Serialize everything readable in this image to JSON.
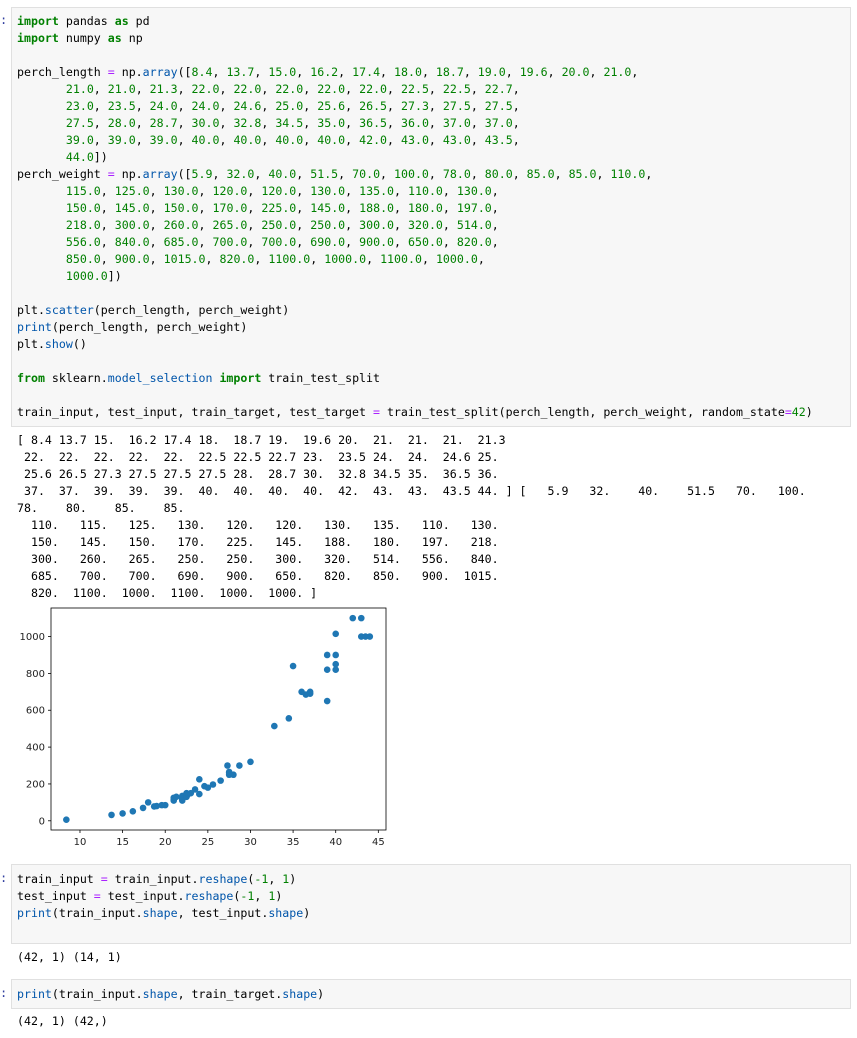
{
  "cell1": {
    "prompt": ":",
    "lines": [
      [
        [
          "import",
          "kw"
        ],
        [
          " pandas ",
          ""
        ],
        [
          "as",
          "kw"
        ],
        [
          " pd",
          ""
        ]
      ],
      [
        [
          "import",
          "kw"
        ],
        [
          " numpy ",
          ""
        ],
        [
          "as",
          "kw"
        ],
        [
          " np",
          ""
        ]
      ],
      [],
      [
        [
          "perch_length ",
          ""
        ],
        [
          "=",
          "op"
        ],
        [
          " np.",
          ""
        ],
        [
          "array",
          "fn"
        ],
        [
          "([",
          ""
        ],
        [
          "8.4",
          "num"
        ],
        [
          ", ",
          ""
        ],
        [
          "13.7",
          "num"
        ],
        [
          ", ",
          ""
        ],
        [
          "15.0",
          "num"
        ],
        [
          ", ",
          ""
        ],
        [
          "16.2",
          "num"
        ],
        [
          ", ",
          ""
        ],
        [
          "17.4",
          "num"
        ],
        [
          ", ",
          ""
        ],
        [
          "18.0",
          "num"
        ],
        [
          ", ",
          ""
        ],
        [
          "18.7",
          "num"
        ],
        [
          ", ",
          ""
        ],
        [
          "19.0",
          "num"
        ],
        [
          ", ",
          ""
        ],
        [
          "19.6",
          "num"
        ],
        [
          ", ",
          ""
        ],
        [
          "20.0",
          "num"
        ],
        [
          ", ",
          ""
        ],
        [
          "21.0",
          "num"
        ],
        [
          ",",
          ""
        ]
      ],
      [
        [
          "       ",
          ""
        ],
        [
          "21.0",
          "num"
        ],
        [
          ", ",
          ""
        ],
        [
          "21.0",
          "num"
        ],
        [
          ", ",
          ""
        ],
        [
          "21.3",
          "num"
        ],
        [
          ", ",
          ""
        ],
        [
          "22.0",
          "num"
        ],
        [
          ", ",
          ""
        ],
        [
          "22.0",
          "num"
        ],
        [
          ", ",
          ""
        ],
        [
          "22.0",
          "num"
        ],
        [
          ", ",
          ""
        ],
        [
          "22.0",
          "num"
        ],
        [
          ", ",
          ""
        ],
        [
          "22.0",
          "num"
        ],
        [
          ", ",
          ""
        ],
        [
          "22.5",
          "num"
        ],
        [
          ", ",
          ""
        ],
        [
          "22.5",
          "num"
        ],
        [
          ", ",
          ""
        ],
        [
          "22.7",
          "num"
        ],
        [
          ",",
          ""
        ]
      ],
      [
        [
          "       ",
          ""
        ],
        [
          "23.0",
          "num"
        ],
        [
          ", ",
          ""
        ],
        [
          "23.5",
          "num"
        ],
        [
          ", ",
          ""
        ],
        [
          "24.0",
          "num"
        ],
        [
          ", ",
          ""
        ],
        [
          "24.0",
          "num"
        ],
        [
          ", ",
          ""
        ],
        [
          "24.6",
          "num"
        ],
        [
          ", ",
          ""
        ],
        [
          "25.0",
          "num"
        ],
        [
          ", ",
          ""
        ],
        [
          "25.6",
          "num"
        ],
        [
          ", ",
          ""
        ],
        [
          "26.5",
          "num"
        ],
        [
          ", ",
          ""
        ],
        [
          "27.3",
          "num"
        ],
        [
          ", ",
          ""
        ],
        [
          "27.5",
          "num"
        ],
        [
          ", ",
          ""
        ],
        [
          "27.5",
          "num"
        ],
        [
          ",",
          ""
        ]
      ],
      [
        [
          "       ",
          ""
        ],
        [
          "27.5",
          "num"
        ],
        [
          ", ",
          ""
        ],
        [
          "28.0",
          "num"
        ],
        [
          ", ",
          ""
        ],
        [
          "28.7",
          "num"
        ],
        [
          ", ",
          ""
        ],
        [
          "30.0",
          "num"
        ],
        [
          ", ",
          ""
        ],
        [
          "32.8",
          "num"
        ],
        [
          ", ",
          ""
        ],
        [
          "34.5",
          "num"
        ],
        [
          ", ",
          ""
        ],
        [
          "35.0",
          "num"
        ],
        [
          ", ",
          ""
        ],
        [
          "36.5",
          "num"
        ],
        [
          ", ",
          ""
        ],
        [
          "36.0",
          "num"
        ],
        [
          ", ",
          ""
        ],
        [
          "37.0",
          "num"
        ],
        [
          ", ",
          ""
        ],
        [
          "37.0",
          "num"
        ],
        [
          ",",
          ""
        ]
      ],
      [
        [
          "       ",
          ""
        ],
        [
          "39.0",
          "num"
        ],
        [
          ", ",
          ""
        ],
        [
          "39.0",
          "num"
        ],
        [
          ", ",
          ""
        ],
        [
          "39.0",
          "num"
        ],
        [
          ", ",
          ""
        ],
        [
          "40.0",
          "num"
        ],
        [
          ", ",
          ""
        ],
        [
          "40.0",
          "num"
        ],
        [
          ", ",
          ""
        ],
        [
          "40.0",
          "num"
        ],
        [
          ", ",
          ""
        ],
        [
          "40.0",
          "num"
        ],
        [
          ", ",
          ""
        ],
        [
          "42.0",
          "num"
        ],
        [
          ", ",
          ""
        ],
        [
          "43.0",
          "num"
        ],
        [
          ", ",
          ""
        ],
        [
          "43.0",
          "num"
        ],
        [
          ", ",
          ""
        ],
        [
          "43.5",
          "num"
        ],
        [
          ",",
          ""
        ]
      ],
      [
        [
          "       ",
          ""
        ],
        [
          "44.0",
          "num"
        ],
        [
          "])",
          ""
        ]
      ],
      [
        [
          "perch_weight ",
          ""
        ],
        [
          "=",
          "op"
        ],
        [
          " np.",
          ""
        ],
        [
          "array",
          "fn"
        ],
        [
          "([",
          ""
        ],
        [
          "5.9",
          "num"
        ],
        [
          ", ",
          ""
        ],
        [
          "32.0",
          "num"
        ],
        [
          ", ",
          ""
        ],
        [
          "40.0",
          "num"
        ],
        [
          ", ",
          ""
        ],
        [
          "51.5",
          "num"
        ],
        [
          ", ",
          ""
        ],
        [
          "70.0",
          "num"
        ],
        [
          ", ",
          ""
        ],
        [
          "100.0",
          "num"
        ],
        [
          ", ",
          ""
        ],
        [
          "78.0",
          "num"
        ],
        [
          ", ",
          ""
        ],
        [
          "80.0",
          "num"
        ],
        [
          ", ",
          ""
        ],
        [
          "85.0",
          "num"
        ],
        [
          ", ",
          ""
        ],
        [
          "85.0",
          "num"
        ],
        [
          ", ",
          ""
        ],
        [
          "110.0",
          "num"
        ],
        [
          ",",
          ""
        ]
      ],
      [
        [
          "       ",
          ""
        ],
        [
          "115.0",
          "num"
        ],
        [
          ", ",
          ""
        ],
        [
          "125.0",
          "num"
        ],
        [
          ", ",
          ""
        ],
        [
          "130.0",
          "num"
        ],
        [
          ", ",
          ""
        ],
        [
          "120.0",
          "num"
        ],
        [
          ", ",
          ""
        ],
        [
          "120.0",
          "num"
        ],
        [
          ", ",
          ""
        ],
        [
          "130.0",
          "num"
        ],
        [
          ", ",
          ""
        ],
        [
          "135.0",
          "num"
        ],
        [
          ", ",
          ""
        ],
        [
          "110.0",
          "num"
        ],
        [
          ", ",
          ""
        ],
        [
          "130.0",
          "num"
        ],
        [
          ",",
          ""
        ]
      ],
      [
        [
          "       ",
          ""
        ],
        [
          "150.0",
          "num"
        ],
        [
          ", ",
          ""
        ],
        [
          "145.0",
          "num"
        ],
        [
          ", ",
          ""
        ],
        [
          "150.0",
          "num"
        ],
        [
          ", ",
          ""
        ],
        [
          "170.0",
          "num"
        ],
        [
          ", ",
          ""
        ],
        [
          "225.0",
          "num"
        ],
        [
          ", ",
          ""
        ],
        [
          "145.0",
          "num"
        ],
        [
          ", ",
          ""
        ],
        [
          "188.0",
          "num"
        ],
        [
          ", ",
          ""
        ],
        [
          "180.0",
          "num"
        ],
        [
          ", ",
          ""
        ],
        [
          "197.0",
          "num"
        ],
        [
          ",",
          ""
        ]
      ],
      [
        [
          "       ",
          ""
        ],
        [
          "218.0",
          "num"
        ],
        [
          ", ",
          ""
        ],
        [
          "300.0",
          "num"
        ],
        [
          ", ",
          ""
        ],
        [
          "260.0",
          "num"
        ],
        [
          ", ",
          ""
        ],
        [
          "265.0",
          "num"
        ],
        [
          ", ",
          ""
        ],
        [
          "250.0",
          "num"
        ],
        [
          ", ",
          ""
        ],
        [
          "250.0",
          "num"
        ],
        [
          ", ",
          ""
        ],
        [
          "300.0",
          "num"
        ],
        [
          ", ",
          ""
        ],
        [
          "320.0",
          "num"
        ],
        [
          ", ",
          ""
        ],
        [
          "514.0",
          "num"
        ],
        [
          ",",
          ""
        ]
      ],
      [
        [
          "       ",
          ""
        ],
        [
          "556.0",
          "num"
        ],
        [
          ", ",
          ""
        ],
        [
          "840.0",
          "num"
        ],
        [
          ", ",
          ""
        ],
        [
          "685.0",
          "num"
        ],
        [
          ", ",
          ""
        ],
        [
          "700.0",
          "num"
        ],
        [
          ", ",
          ""
        ],
        [
          "700.0",
          "num"
        ],
        [
          ", ",
          ""
        ],
        [
          "690.0",
          "num"
        ],
        [
          ", ",
          ""
        ],
        [
          "900.0",
          "num"
        ],
        [
          ", ",
          ""
        ],
        [
          "650.0",
          "num"
        ],
        [
          ", ",
          ""
        ],
        [
          "820.0",
          "num"
        ],
        [
          ",",
          ""
        ]
      ],
      [
        [
          "       ",
          ""
        ],
        [
          "850.0",
          "num"
        ],
        [
          ", ",
          ""
        ],
        [
          "900.0",
          "num"
        ],
        [
          ", ",
          ""
        ],
        [
          "1015.0",
          "num"
        ],
        [
          ", ",
          ""
        ],
        [
          "820.0",
          "num"
        ],
        [
          ", ",
          ""
        ],
        [
          "1100.0",
          "num"
        ],
        [
          ", ",
          ""
        ],
        [
          "1000.0",
          "num"
        ],
        [
          ", ",
          ""
        ],
        [
          "1100.0",
          "num"
        ],
        [
          ", ",
          ""
        ],
        [
          "1000.0",
          "num"
        ],
        [
          ",",
          ""
        ]
      ],
      [
        [
          "       ",
          ""
        ],
        [
          "1000.0",
          "num"
        ],
        [
          "])",
          ""
        ]
      ],
      [],
      [
        [
          "plt.",
          ""
        ],
        [
          "scatter",
          "fn"
        ],
        [
          "(perch_length, perch_weight)",
          ""
        ]
      ],
      [
        [
          "print",
          "fn"
        ],
        [
          "(perch_length, perch_weight)",
          ""
        ]
      ],
      [
        [
          "plt.",
          ""
        ],
        [
          "show",
          "fn"
        ],
        [
          "()",
          ""
        ]
      ],
      [],
      [
        [
          "from",
          "kw"
        ],
        [
          " sklearn.",
          ""
        ],
        [
          "model_selection",
          "fn"
        ],
        [
          " ",
          ""
        ],
        [
          "import",
          "kw"
        ],
        [
          " train_test_split",
          ""
        ]
      ],
      [],
      [
        [
          "train_input, test_input, train_target, test_target ",
          ""
        ],
        [
          "=",
          "op"
        ],
        [
          " train_test_split(perch_length, perch_weight, random_state",
          ""
        ],
        [
          "=",
          "op"
        ],
        [
          "42",
          "num"
        ],
        [
          ")",
          ""
        ]
      ]
    ]
  },
  "output1": [
    "[ 8.4 13.7 15.  16.2 17.4 18.  18.7 19.  19.6 20.  21.  21.  21.  21.3",
    " 22.  22.  22.  22.  22.  22.5 22.5 22.7 23.  23.5 24.  24.  24.6 25.",
    " 25.6 26.5 27.3 27.5 27.5 27.5 28.  28.7 30.  32.8 34.5 35.  36.5 36.",
    " 37.  37.  39.  39.  39.  40.  40.  40.  40.  42.  43.  43.  43.5 44. ] [   5.9   32.    40.    51.5   70.   100.",
    "78.    80.    85.    85.",
    "  110.   115.   125.   130.   120.   120.   130.   135.   110.   130.",
    "  150.   145.   150.   170.   225.   145.   188.   180.   197.   218.",
    "  300.   260.   265.   250.   250.   300.   320.   514.   556.   840.",
    "  685.   700.   700.   690.   900.   650.   820.   850.   900.  1015.",
    "  820.  1100.  1000.  1100.  1000.  1000. ]"
  ],
  "chart_data": {
    "type": "scatter",
    "title": "",
    "xlabel": "",
    "ylabel": "",
    "xlim": [
      6.6,
      45.9
    ],
    "ylim": [
      -50,
      1155
    ],
    "xticks": [
      10,
      15,
      20,
      25,
      30,
      35,
      40,
      45
    ],
    "yticks": [
      0,
      200,
      400,
      600,
      800,
      1000
    ],
    "color": "#1f77b4",
    "x": [
      8.4,
      13.7,
      15.0,
      16.2,
      17.4,
      18.0,
      18.7,
      19.0,
      19.6,
      20.0,
      21.0,
      21.0,
      21.0,
      21.3,
      22.0,
      22.0,
      22.0,
      22.0,
      22.0,
      22.5,
      22.5,
      22.7,
      23.0,
      23.5,
      24.0,
      24.0,
      24.6,
      25.0,
      25.6,
      26.5,
      27.3,
      27.5,
      27.5,
      27.5,
      28.0,
      28.7,
      30.0,
      32.8,
      34.5,
      35.0,
      36.5,
      36.0,
      37.0,
      37.0,
      39.0,
      39.0,
      39.0,
      40.0,
      40.0,
      40.0,
      40.0,
      42.0,
      43.0,
      43.0,
      43.5,
      44.0
    ],
    "y": [
      5.9,
      32.0,
      40.0,
      51.5,
      70.0,
      100.0,
      78.0,
      80.0,
      85.0,
      85.0,
      110.0,
      115.0,
      125.0,
      130.0,
      120.0,
      120.0,
      130.0,
      135.0,
      110.0,
      130.0,
      150.0,
      145.0,
      150.0,
      170.0,
      225.0,
      145.0,
      188.0,
      180.0,
      197.0,
      218.0,
      300.0,
      260.0,
      265.0,
      250.0,
      250.0,
      300.0,
      320.0,
      514.0,
      556.0,
      840.0,
      685.0,
      700.0,
      700.0,
      690.0,
      900.0,
      650.0,
      820.0,
      850.0,
      900.0,
      1015.0,
      820.0,
      1100.0,
      1000.0,
      1100.0,
      1000.0,
      1000.0
    ]
  },
  "cell2": {
    "prompt": ":",
    "lines": [
      [
        [
          "train_input ",
          ""
        ],
        [
          "=",
          "op"
        ],
        [
          " train_input.",
          ""
        ],
        [
          "reshape",
          "fn"
        ],
        [
          "(",
          ""
        ],
        [
          "-1",
          "num"
        ],
        [
          ", ",
          ""
        ],
        [
          "1",
          "num"
        ],
        [
          ")",
          ""
        ]
      ],
      [
        [
          "test_input ",
          ""
        ],
        [
          "=",
          "op"
        ],
        [
          " test_input.",
          ""
        ],
        [
          "reshape",
          "fn"
        ],
        [
          "(",
          ""
        ],
        [
          "-1",
          "num"
        ],
        [
          ", ",
          ""
        ],
        [
          "1",
          "num"
        ],
        [
          ")",
          ""
        ]
      ],
      [
        [
          "print",
          "fn"
        ],
        [
          "(train_input.",
          ""
        ],
        [
          "shape",
          "fn"
        ],
        [
          ", test_input.",
          ""
        ],
        [
          "shape",
          "fn"
        ],
        [
          ")",
          ""
        ]
      ]
    ]
  },
  "output2": [
    "(42, 1) (14, 1)"
  ],
  "cell3": {
    "prompt": ":",
    "lines": [
      [
        [
          "print",
          "fn"
        ],
        [
          "(train_input.",
          ""
        ],
        [
          "shape",
          "fn"
        ],
        [
          ", train_target.",
          ""
        ],
        [
          "shape",
          "fn"
        ],
        [
          ")",
          ""
        ]
      ]
    ]
  },
  "output3": [
    "(42, 1) (42,)"
  ]
}
